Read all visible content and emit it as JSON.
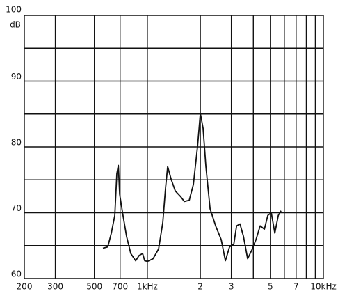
{
  "chart_data": {
    "type": "line",
    "y_label": "dB",
    "log_x": true,
    "color": "#111111",
    "grid": true,
    "xlim": [
      200,
      10000
    ],
    "ylim": [
      60,
      100
    ],
    "xticks": [
      200,
      300,
      500,
      700,
      {
        "value": 1000,
        "label": "1kHz"
      },
      {
        "value": 2000,
        "label": "2"
      },
      {
        "value": 3000,
        "label": "3"
      },
      {
        "value": 5000,
        "label": "5"
      },
      {
        "value": 7000,
        "label": "7"
      },
      {
        "value": 10000,
        "label": "10kHz"
      }
    ],
    "x_minor_grid": [
      4000,
      6000,
      8000,
      9000
    ],
    "yticks": [
      60,
      70,
      80,
      90,
      100
    ],
    "y_minor_grid": [
      65,
      75,
      85,
      95
    ],
    "x": [
      559,
      596,
      624,
      653,
      671,
      684,
      696,
      722,
      762,
      805,
      858,
      898,
      940,
      966,
      1002,
      1077,
      1159,
      1224,
      1269,
      1304,
      1365,
      1442,
      1550,
      1623,
      1730,
      1826,
      1929,
      2000,
      2075,
      2152,
      2271,
      2444,
      2628,
      2774,
      2931,
      3097,
      3212,
      3360,
      3516,
      3714,
      3918,
      4142,
      4375,
      4622,
      4834,
      5060,
      5298,
      5546,
      5745
    ],
    "values": [
      64.6,
      64.8,
      66.9,
      69.6,
      75.9,
      77.2,
      72.8,
      70.1,
      66.4,
      63.8,
      62.7,
      63.5,
      63.8,
      62.7,
      62.6,
      63.0,
      64.5,
      68.5,
      73.8,
      77.0,
      75.1,
      73.3,
      72.4,
      71.7,
      71.9,
      74.3,
      80.1,
      85.1,
      82.8,
      77.0,
      70.6,
      68.0,
      65.9,
      62.7,
      64.8,
      65.2,
      68.0,
      68.3,
      66.4,
      63.0,
      64.3,
      65.9,
      68.0,
      67.5,
      69.6,
      70.0,
      66.9,
      69.6,
      70.3
    ]
  }
}
